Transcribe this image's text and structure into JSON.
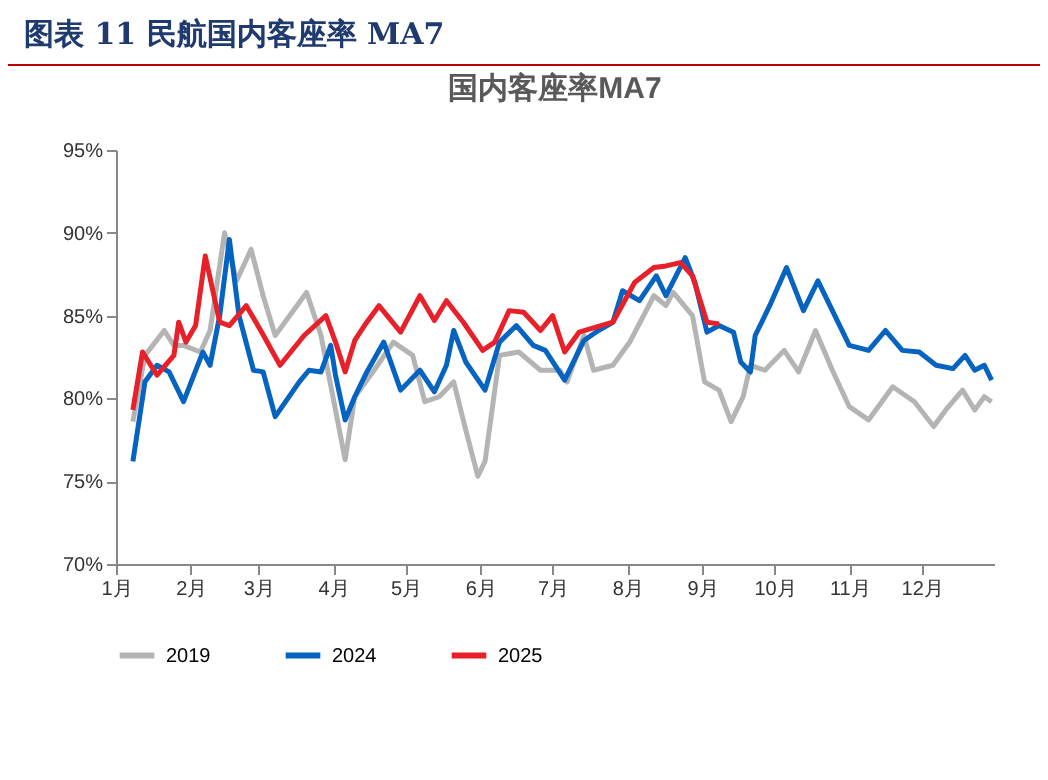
{
  "chart_data": {
    "type": "line",
    "title": "图表 11 民航国内客座率 MA7",
    "subtitle": "国内客座率MA7",
    "xlim": [
      "--01-01",
      "--12-31"
    ],
    "xticks": [
      {
        "value": "--01-01",
        "label": "1月"
      },
      {
        "value": "--02-01",
        "label": "2月"
      },
      {
        "value": "--03-01",
        "label": "3月"
      },
      {
        "value": "--04-01",
        "label": "4月"
      },
      {
        "value": "--05-01",
        "label": "5月"
      },
      {
        "value": "--06-01",
        "label": "6月"
      },
      {
        "value": "--07-01",
        "label": "7月"
      },
      {
        "value": "--08-01",
        "label": "8月"
      },
      {
        "value": "--09-01",
        "label": "9月"
      },
      {
        "value": "--10-01",
        "label": "10月"
      },
      {
        "value": "--11-01",
        "label": "11月"
      },
      {
        "value": "--12-01",
        "label": "12月"
      }
    ],
    "ylim": [
      70,
      95
    ],
    "yticks": [
      {
        "value": 70,
        "label": "70%"
      },
      {
        "value": 75,
        "label": "75%"
      },
      {
        "value": 80,
        "label": "80%"
      },
      {
        "value": 85,
        "label": "85%"
      },
      {
        "value": 90,
        "label": "90%"
      },
      {
        "value": 95,
        "label": "95%"
      }
    ],
    "legend": "bottom",
    "series": [
      {
        "name": "2019",
        "color": "#b4b4b4",
        "x": [
          "--01-08",
          "--01-13",
          "--01-21",
          "--01-25",
          "--01-29",
          "--02-05",
          "--02-09",
          "--02-15",
          "--02-20",
          "--02-26",
          "--03-03",
          "--03-08",
          "--03-21",
          "--03-27",
          "--04-02",
          "--04-06",
          "--04-10",
          "--04-18",
          "--04-26",
          "--05-04",
          "--05-09",
          "--05-15",
          "--05-21",
          "--05-26",
          "--05-31",
          "--06-03",
          "--06-09",
          "--06-17",
          "--06-26",
          "--07-04",
          "--07-07",
          "--07-14",
          "--07-18",
          "--07-26",
          "--08-02",
          "--08-12",
          "--08-17",
          "--08-20",
          "--08-28",
          "--09-02",
          "--09-08",
          "--09-13",
          "--09-18",
          "--09-21",
          "--09-27",
          "--10-05",
          "--10-11",
          "--10-18",
          "--10-25",
          "--11-01",
          "--11-09",
          "--11-19",
          "--11-28",
          "--12-06",
          "--12-11",
          "--12-18",
          "--12-23",
          "--12-27",
          "--12-30"
        ],
        "values": [
          78.6,
          82.6,
          84.1,
          83.2,
          83.2,
          82.8,
          84.1,
          90.0,
          87.1,
          89.0,
          86.2,
          83.8,
          86.4,
          83.8,
          79.3,
          76.3,
          80.1,
          81.7,
          83.4,
          82.6,
          79.8,
          80.1,
          81.0,
          78.1,
          75.3,
          76.2,
          82.6,
          82.8,
          81.7,
          81.7,
          81.0,
          83.8,
          81.7,
          82.0,
          83.4,
          86.2,
          85.6,
          86.4,
          85.0,
          81.0,
          80.5,
          78.6,
          80.1,
          82.0,
          81.7,
          82.9,
          81.6,
          84.1,
          81.7,
          79.5,
          78.7,
          80.7,
          79.8,
          78.3,
          79.3,
          80.5,
          79.3,
          80.1,
          79.8
        ]
      },
      {
        "name": "2024",
        "color": "#0563c1",
        "x": [
          "--01-08",
          "--01-13",
          "--01-18",
          "--01-23",
          "--01-29",
          "--02-06",
          "--02-09",
          "--02-13",
          "--02-17",
          "--02-21",
          "--02-27",
          "--03-03",
          "--03-08",
          "--03-18",
          "--03-22",
          "--03-27",
          "--03-31",
          "--04-02",
          "--04-06",
          "--04-10",
          "--04-15",
          "--04-22",
          "--04-29",
          "--05-07",
          "--05-13",
          "--05-18",
          "--05-21",
          "--05-26",
          "--06-03",
          "--06-09",
          "--06-16",
          "--06-23",
          "--06-28",
          "--07-06",
          "--07-14",
          "--07-20",
          "--07-26",
          "--07-30",
          "--08-06",
          "--08-13",
          "--08-17",
          "--08-25",
          "--08-29",
          "--09-03",
          "--09-08",
          "--09-14",
          "--09-17",
          "--09-21",
          "--09-23",
          "--09-29",
          "--10-06",
          "--10-13",
          "--10-19",
          "--10-25",
          "--11-01",
          "--11-09",
          "--11-16",
          "--11-23",
          "--11-30",
          "--12-07",
          "--12-14",
          "--12-19",
          "--12-23",
          "--12-27",
          "--12-30"
        ],
        "values": [
          76.2,
          81.0,
          82.0,
          81.6,
          79.8,
          82.8,
          82.0,
          85.0,
          89.6,
          85.0,
          81.7,
          81.6,
          78.9,
          81.0,
          81.7,
          81.6,
          83.2,
          81.4,
          78.7,
          80.1,
          81.6,
          83.4,
          80.5,
          81.7,
          80.4,
          82.0,
          84.1,
          82.2,
          80.5,
          83.4,
          84.4,
          83.2,
          82.9,
          81.1,
          83.5,
          84.1,
          84.6,
          86.5,
          85.9,
          87.4,
          86.2,
          88.5,
          87.0,
          84.0,
          84.4,
          84.0,
          82.2,
          81.6,
          83.8,
          85.6,
          87.9,
          85.3,
          87.1,
          85.3,
          83.2,
          82.9,
          84.1,
          82.9,
          82.8,
          82.0,
          81.8,
          82.6,
          81.7,
          82.0,
          81.1
        ]
      },
      {
        "name": "2025",
        "color": "#e8202a",
        "x": [
          "--01-08",
          "--01-12",
          "--01-18",
          "--01-25",
          "--01-27",
          "--01-30",
          "--02-03",
          "--02-07",
          "--02-13",
          "--02-17",
          "--02-24",
          "--03-02",
          "--03-10",
          "--03-20",
          "--03-29",
          "--04-02",
          "--04-06",
          "--04-10",
          "--04-14",
          "--04-20",
          "--04-29",
          "--05-07",
          "--05-13",
          "--05-18",
          "--05-25",
          "--06-02",
          "--06-07",
          "--06-13",
          "--06-19",
          "--06-26",
          "--07-01",
          "--07-06",
          "--07-12",
          "--07-19",
          "--07-26",
          "--08-04",
          "--08-12",
          "--08-17",
          "--08-23",
          "--08-28",
          "--09-03",
          "--09-08"
        ],
        "values": [
          79.3,
          82.8,
          81.4,
          82.6,
          84.6,
          83.4,
          84.4,
          88.6,
          84.6,
          84.4,
          85.6,
          84.1,
          82.0,
          83.8,
          85.0,
          83.4,
          81.6,
          83.5,
          84.4,
          85.6,
          84.0,
          86.2,
          84.7,
          85.9,
          84.6,
          82.9,
          83.4,
          85.3,
          85.2,
          84.1,
          85.0,
          82.8,
          84.0,
          84.3,
          84.6,
          87.0,
          87.9,
          88.0,
          88.2,
          87.4,
          84.6,
          84.5
        ]
      }
    ]
  }
}
